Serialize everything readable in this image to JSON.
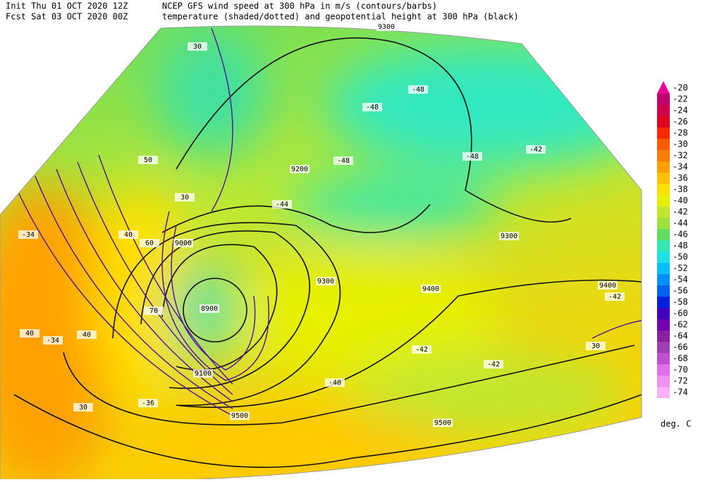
{
  "header": {
    "init": "Init  Thu 01 OCT 2020 12Z",
    "fcst": "Fcst Sat 03 OCT 2020 00Z",
    "line1": "NCEP GFS wind speed at 300 hPa in m/s (contours/barbs)",
    "line2": "temperature (shaded/dotted) and geopotential height at 300 hPa (black)"
  },
  "colorbar": {
    "levels": [
      -20,
      -22,
      -24,
      -26,
      -28,
      -30,
      -32,
      -34,
      -36,
      -38,
      -40,
      -42,
      -44,
      -46,
      -48,
      -50,
      -52,
      -54,
      -56,
      -58,
      -60,
      -62,
      -64,
      -66,
      -68,
      -70,
      -72,
      -74
    ],
    "colors": [
      "#e80098",
      "#c0006a",
      "#d00048",
      "#e00020",
      "#ff2800",
      "#ff5a00",
      "#ff7d00",
      "#ffa000",
      "#ffc000",
      "#ffe000",
      "#e6f000",
      "#c0e830",
      "#9ee040",
      "#60dc60",
      "#30e8b0",
      "#20e0e8",
      "#00c0ff",
      "#0090ff",
      "#0060f0",
      "#0020e0",
      "#4000c0",
      "#7000b0",
      "#8820a0",
      "#a040b0",
      "#c050d0",
      "#e070e8",
      "#f090f0",
      "#ffb0ff"
    ],
    "unit": "deg. C"
  },
  "map_labels": [
    "9300",
    "9200",
    "9000",
    "9100",
    "8900",
    "9400",
    "9500",
    "9300",
    "9400",
    "9500",
    "9300",
    "-48",
    "-48",
    "-48",
    "-48",
    "-42",
    "-42",
    "-44",
    "-40",
    "-42",
    "-42",
    "-34",
    "-34",
    "-36",
    "30",
    "30",
    "40",
    "40",
    "50",
    "60",
    "70",
    "30",
    "30",
    "40"
  ]
}
